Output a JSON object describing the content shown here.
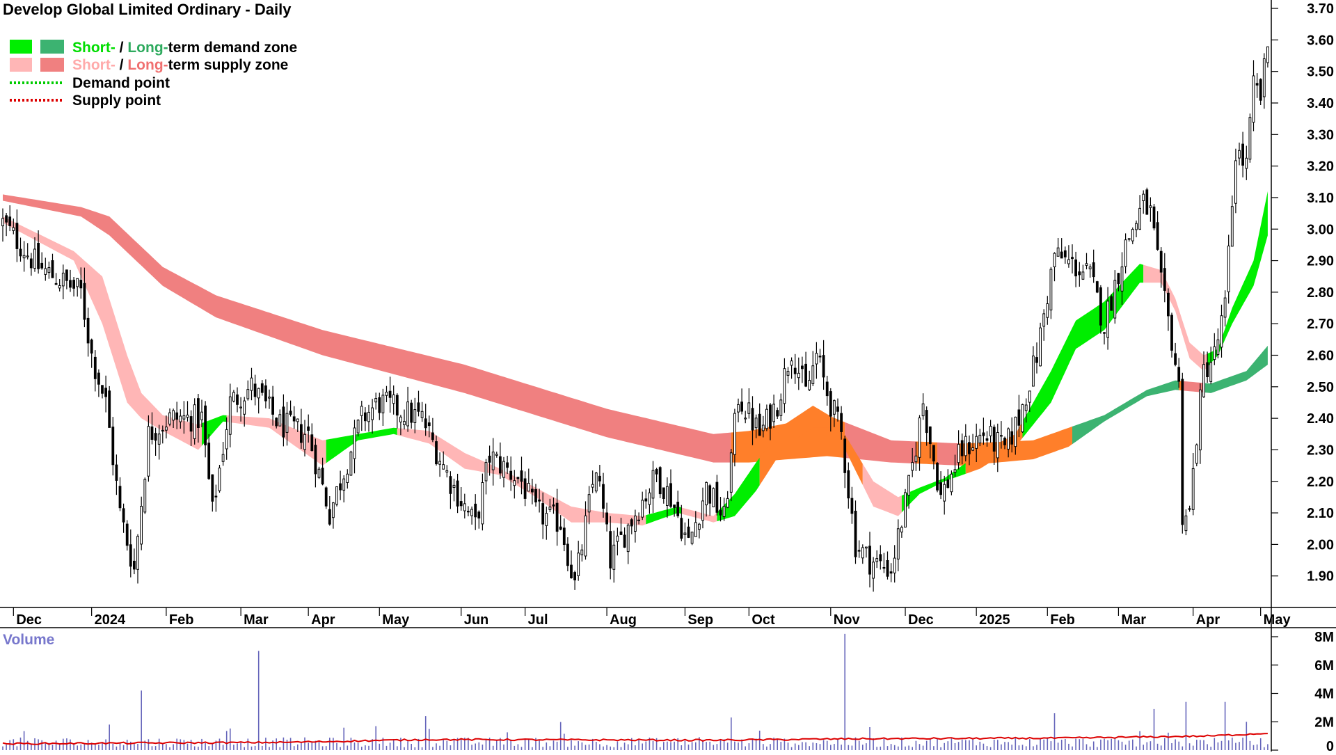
{
  "chart_data": {
    "type": "candlestick",
    "title": "Develop Global Limited Ordinary - Daily",
    "legend": {
      "demand_zone": {
        "short_label": "Short-",
        "sep": " / ",
        "long_label": "Long-",
        "rest": "term demand zone"
      },
      "supply_zone": {
        "short_label": "Short-",
        "sep": " / ",
        "long_label": "Long-",
        "rest": "term supply zone"
      },
      "demand_point": "Demand point",
      "supply_point": "Supply point"
    },
    "colors": {
      "short_demand": "#00ee00",
      "long_demand": "#3cb371",
      "short_supply": "#ffb6b6",
      "long_supply": "#f08080",
      "overlap_orange": "#ff7f2a",
      "demand_point": "#00cc00",
      "supply_point": "#dd0000",
      "volume_bar": "#6666bb",
      "volume_ma": "#dd0000",
      "volume_title": "#7777cc"
    },
    "y_axis": {
      "ylim": [
        1.8,
        3.72
      ],
      "ticks": [
        "1.90",
        "2.00",
        "2.10",
        "2.20",
        "2.30",
        "2.40",
        "2.50",
        "2.60",
        "2.70",
        "2.80",
        "2.90",
        "3.00",
        "3.10",
        "3.20",
        "3.30",
        "3.40",
        "3.50",
        "3.60",
        "3.70"
      ]
    },
    "x_axis": {
      "labels": [
        "Dec",
        "2024",
        "Feb",
        "Mar",
        "Apr",
        "May",
        "Jun",
        "Jul",
        "Aug",
        "Sep",
        "Oct",
        "Nov",
        "Dec",
        "2025",
        "Feb",
        "Mar",
        "Apr",
        "May"
      ],
      "label_day_index": [
        3,
        25,
        46,
        67,
        86,
        106,
        129,
        147,
        170,
        192,
        210,
        233,
        254,
        274,
        294,
        314,
        335,
        354
      ]
    },
    "price_checkpoints": [
      {
        "i": 0,
        "c": 3.02
      },
      {
        "i": 10,
        "c": 2.88
      },
      {
        "i": 22,
        "c": 2.8
      },
      {
        "i": 25,
        "c": 2.6
      },
      {
        "i": 29,
        "c": 2.45
      },
      {
        "i": 33,
        "c": 2.1
      },
      {
        "i": 37,
        "c": 1.92
      },
      {
        "i": 41,
        "c": 2.35
      },
      {
        "i": 47,
        "c": 2.4
      },
      {
        "i": 56,
        "c": 2.4
      },
      {
        "i": 59,
        "c": 2.1
      },
      {
        "i": 64,
        "c": 2.45
      },
      {
        "i": 70,
        "c": 2.5
      },
      {
        "i": 78,
        "c": 2.38
      },
      {
        "i": 86,
        "c": 2.35
      },
      {
        "i": 92,
        "c": 2.1
      },
      {
        "i": 101,
        "c": 2.4
      },
      {
        "i": 106,
        "c": 2.45
      },
      {
        "i": 113,
        "c": 2.42
      },
      {
        "i": 118,
        "c": 2.4
      },
      {
        "i": 126,
        "c": 2.2
      },
      {
        "i": 133,
        "c": 2.06
      },
      {
        "i": 137,
        "c": 2.28
      },
      {
        "i": 146,
        "c": 2.2
      },
      {
        "i": 150,
        "c": 2.1
      },
      {
        "i": 157,
        "c": 2.07
      },
      {
        "i": 161,
        "c": 1.87
      },
      {
        "i": 167,
        "c": 2.25
      },
      {
        "i": 171,
        "c": 1.95
      },
      {
        "i": 178,
        "c": 2.1
      },
      {
        "i": 184,
        "c": 2.22
      },
      {
        "i": 188,
        "c": 2.15
      },
      {
        "i": 193,
        "c": 2.0
      },
      {
        "i": 198,
        "c": 2.18
      },
      {
        "i": 203,
        "c": 2.08
      },
      {
        "i": 207,
        "c": 2.47
      },
      {
        "i": 213,
        "c": 2.35
      },
      {
        "i": 218,
        "c": 2.45
      },
      {
        "i": 222,
        "c": 2.62
      },
      {
        "i": 226,
        "c": 2.48
      },
      {
        "i": 229,
        "c": 2.6
      },
      {
        "i": 232,
        "c": 2.48
      },
      {
        "i": 236,
        "c": 2.35
      },
      {
        "i": 240,
        "c": 2.0
      },
      {
        "i": 244,
        "c": 1.95
      },
      {
        "i": 250,
        "c": 1.92
      },
      {
        "i": 255,
        "c": 2.18
      },
      {
        "i": 259,
        "c": 2.45
      },
      {
        "i": 264,
        "c": 2.15
      },
      {
        "i": 270,
        "c": 2.3
      },
      {
        "i": 276,
        "c": 2.35
      },
      {
        "i": 282,
        "c": 2.3
      },
      {
        "i": 286,
        "c": 2.4
      },
      {
        "i": 291,
        "c": 2.6
      },
      {
        "i": 296,
        "c": 2.92
      },
      {
        "i": 302,
        "c": 2.88
      },
      {
        "i": 306,
        "c": 2.85
      },
      {
        "i": 310,
        "c": 2.7
      },
      {
        "i": 316,
        "c": 2.95
      },
      {
        "i": 321,
        "c": 3.08
      },
      {
        "i": 323,
        "c": 3.05
      },
      {
        "i": 326,
        "c": 2.82
      },
      {
        "i": 329,
        "c": 2.65
      },
      {
        "i": 331,
        "c": 2.5
      },
      {
        "i": 332,
        "c": 2.1
      },
      {
        "i": 334,
        "c": 2.1
      },
      {
        "i": 336,
        "c": 2.35
      },
      {
        "i": 338,
        "c": 2.55
      },
      {
        "i": 341,
        "c": 2.6
      },
      {
        "i": 344,
        "c": 2.75
      },
      {
        "i": 347,
        "c": 3.25
      },
      {
        "i": 350,
        "c": 3.2
      },
      {
        "i": 352,
        "c": 3.45
      },
      {
        "i": 354,
        "c": 3.42
      },
      {
        "i": 356,
        "c": 3.58
      }
    ],
    "long_zone": [
      {
        "i": 0,
        "a": 3.11,
        "b": 3.09
      },
      {
        "i": 22,
        "a": 3.07,
        "b": 3.04
      },
      {
        "i": 30,
        "a": 3.04,
        "b": 2.98
      },
      {
        "i": 45,
        "a": 2.88,
        "b": 2.82
      },
      {
        "i": 60,
        "a": 2.79,
        "b": 2.72
      },
      {
        "i": 90,
        "a": 2.68,
        "b": 2.6
      },
      {
        "i": 130,
        "a": 2.57,
        "b": 2.48
      },
      {
        "i": 170,
        "a": 2.43,
        "b": 2.34
      },
      {
        "i": 200,
        "a": 2.35,
        "b": 2.26
      },
      {
        "i": 210,
        "a": 2.36,
        "b": 2.26
      },
      {
        "i": 232,
        "a": 2.41,
        "b": 2.28
      },
      {
        "i": 250,
        "a": 2.33,
        "b": 2.26
      },
      {
        "i": 270,
        "a": 2.32,
        "b": 2.25
      },
      {
        "i": 290,
        "a": 2.33,
        "b": 2.27
      },
      {
        "i": 300,
        "a": 2.37,
        "b": 2.31
      },
      {
        "i": 310,
        "a": 2.41,
        "b": 2.39
      },
      {
        "i": 322,
        "a": 2.49,
        "b": 2.47
      },
      {
        "i": 330,
        "a": 2.52,
        "b": 2.49
      },
      {
        "i": 340,
        "a": 2.51,
        "b": 2.48
      },
      {
        "i": 350,
        "a": 2.55,
        "b": 2.52
      },
      {
        "i": 356,
        "a": 2.63,
        "b": 2.57
      }
    ],
    "short_zone": [
      {
        "i": 0,
        "a": 3.04,
        "b": 3.02
      },
      {
        "i": 20,
        "a": 2.93,
        "b": 2.9
      },
      {
        "i": 28,
        "a": 2.85,
        "b": 2.7
      },
      {
        "i": 35,
        "a": 2.6,
        "b": 2.45
      },
      {
        "i": 39,
        "a": 2.48,
        "b": 2.4
      },
      {
        "i": 45,
        "a": 2.41,
        "b": 2.36
      },
      {
        "i": 55,
        "a": 2.38,
        "b": 2.3
      },
      {
        "i": 62,
        "a": 2.41,
        "b": 2.39
      },
      {
        "i": 75,
        "a": 2.4,
        "b": 2.37
      },
      {
        "i": 90,
        "a": 2.33,
        "b": 2.25
      },
      {
        "i": 100,
        "a": 2.35,
        "b": 2.33
      },
      {
        "i": 110,
        "a": 2.37,
        "b": 2.35
      },
      {
        "i": 120,
        "a": 2.36,
        "b": 2.32
      },
      {
        "i": 130,
        "a": 2.29,
        "b": 2.24
      },
      {
        "i": 140,
        "a": 2.24,
        "b": 2.22
      },
      {
        "i": 150,
        "a": 2.18,
        "b": 2.15
      },
      {
        "i": 160,
        "a": 2.12,
        "b": 2.07
      },
      {
        "i": 170,
        "a": 2.1,
        "b": 2.07
      },
      {
        "i": 180,
        "a": 2.09,
        "b": 2.06
      },
      {
        "i": 190,
        "a": 2.12,
        "b": 2.1
      },
      {
        "i": 200,
        "a": 2.09,
        "b": 2.07
      },
      {
        "i": 206,
        "a": 2.16,
        "b": 2.09
      },
      {
        "i": 212,
        "a": 2.26,
        "b": 2.17
      },
      {
        "i": 220,
        "a": 2.38,
        "b": 2.31
      },
      {
        "i": 228,
        "a": 2.44,
        "b": 2.37
      },
      {
        "i": 234,
        "a": 2.4,
        "b": 2.37
      },
      {
        "i": 238,
        "a": 2.33,
        "b": 2.28
      },
      {
        "i": 245,
        "a": 2.2,
        "b": 2.12
      },
      {
        "i": 252,
        "a": 2.15,
        "b": 2.09
      },
      {
        "i": 258,
        "a": 2.18,
        "b": 2.16
      },
      {
        "i": 265,
        "a": 2.21,
        "b": 2.2
      },
      {
        "i": 275,
        "a": 2.29,
        "b": 2.24
      },
      {
        "i": 285,
        "a": 2.35,
        "b": 2.31
      },
      {
        "i": 295,
        "a": 2.55,
        "b": 2.45
      },
      {
        "i": 302,
        "a": 2.71,
        "b": 2.62
      },
      {
        "i": 310,
        "a": 2.77,
        "b": 2.68
      },
      {
        "i": 320,
        "a": 2.89,
        "b": 2.83
      },
      {
        "i": 326,
        "a": 2.87,
        "b": 2.83
      },
      {
        "i": 330,
        "a": 2.78,
        "b": 2.74
      },
      {
        "i": 334,
        "a": 2.64,
        "b": 2.59
      },
      {
        "i": 338,
        "a": 2.6,
        "b": 2.55
      },
      {
        "i": 342,
        "a": 2.62,
        "b": 2.6
      },
      {
        "i": 346,
        "a": 2.75,
        "b": 2.7
      },
      {
        "i": 352,
        "a": 2.9,
        "b": 2.82
      },
      {
        "i": 356,
        "a": 3.12,
        "b": 2.98
      }
    ],
    "volume": {
      "label": "Volume",
      "ylim": [
        0,
        8
      ],
      "ticks": [
        "0",
        "2M",
        "4M",
        "6M",
        "8M"
      ],
      "base_millions": 0.5,
      "ma_millions": [
        {
          "i": 0,
          "v": 0.45
        },
        {
          "i": 80,
          "v": 0.55
        },
        {
          "i": 120,
          "v": 0.75
        },
        {
          "i": 200,
          "v": 0.7
        },
        {
          "i": 240,
          "v": 0.8
        },
        {
          "i": 300,
          "v": 0.85
        },
        {
          "i": 340,
          "v": 1.0
        },
        {
          "i": 356,
          "v": 1.2
        }
      ],
      "spikes": [
        {
          "i": 39,
          "v": 4.2
        },
        {
          "i": 72,
          "v": 7.0
        },
        {
          "i": 237,
          "v": 8.2
        },
        {
          "i": 205,
          "v": 2.3
        },
        {
          "i": 119,
          "v": 2.4
        },
        {
          "i": 296,
          "v": 2.6
        },
        {
          "i": 333,
          "v": 3.4
        },
        {
          "i": 344,
          "v": 3.4
        },
        {
          "i": 324,
          "v": 2.9
        },
        {
          "i": 350,
          "v": 2.0
        }
      ]
    }
  }
}
